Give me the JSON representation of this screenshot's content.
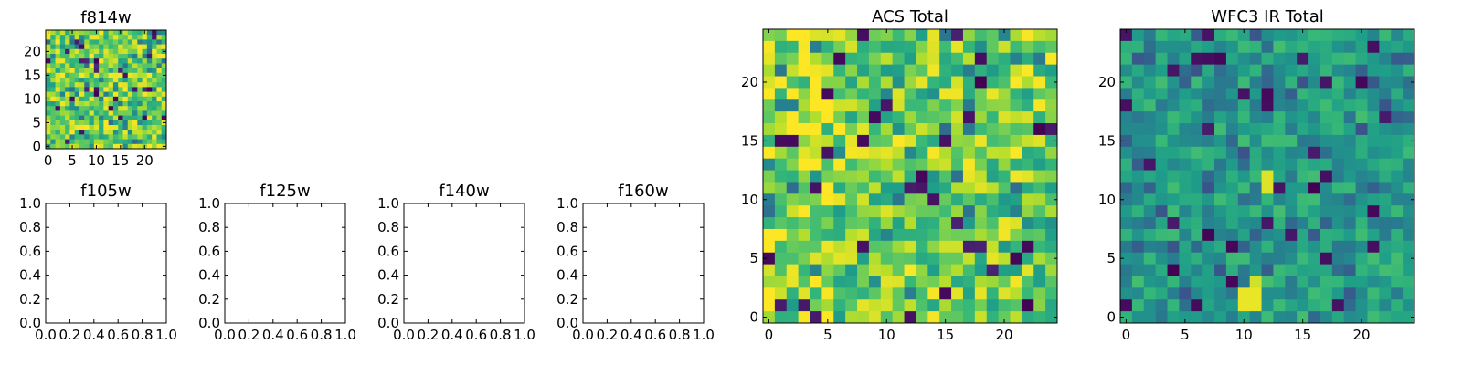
{
  "chart_data": [
    {
      "type": "heatmap",
      "title": "f814w",
      "xlabel": "",
      "ylabel": "",
      "xlim": [
        -0.5,
        24.5
      ],
      "ylim": [
        -0.5,
        24.5
      ],
      "xticks": [
        0,
        5,
        10,
        15,
        20
      ],
      "yticks": [
        0,
        5,
        10,
        15,
        20
      ],
      "xtick_labels": [
        "0",
        "5",
        "10",
        "15",
        "20"
      ],
      "ytick_labels": [
        "0",
        "5",
        "10",
        "15",
        "20"
      ],
      "grid": false,
      "colormap": "viridis",
      "value_range": [
        0,
        1
      ],
      "values_note": ""
    },
    {
      "type": "scatter",
      "title": "f105w",
      "xlim": [
        0,
        1
      ],
      "ylim": [
        0,
        1
      ],
      "xticks": [
        0,
        0.2,
        0.4,
        0.6,
        0.8,
        1.0
      ],
      "yticks": [
        0,
        0.2,
        0.4,
        0.6,
        0.8,
        1.0
      ],
      "xtick_labels": [
        "0.0",
        "0.2",
        "0.4",
        "0.6",
        "0.8",
        "1.0"
      ],
      "ytick_labels": [
        "0.0",
        "0.2",
        "0.4",
        "0.6",
        "0.8",
        "1.0"
      ],
      "grid": false,
      "series": []
    },
    {
      "type": "scatter",
      "title": "f125w",
      "xlim": [
        0,
        1
      ],
      "ylim": [
        0,
        1
      ],
      "xticks": [
        0,
        0.2,
        0.4,
        0.6,
        0.8,
        1.0
      ],
      "yticks": [
        0,
        0.2,
        0.4,
        0.6,
        0.8,
        1.0
      ],
      "xtick_labels": [
        "0.0",
        "0.2",
        "0.4",
        "0.6",
        "0.8",
        "1.0"
      ],
      "ytick_labels": [
        "0.0",
        "0.2",
        "0.4",
        "0.6",
        "0.8",
        "1.0"
      ],
      "grid": false,
      "series": []
    },
    {
      "type": "scatter",
      "title": "f140w",
      "xlim": [
        0,
        1
      ],
      "ylim": [
        0,
        1
      ],
      "xticks": [
        0,
        0.2,
        0.4,
        0.6,
        0.8,
        1.0
      ],
      "yticks": [
        0,
        0.2,
        0.4,
        0.6,
        0.8,
        1.0
      ],
      "xtick_labels": [
        "0.0",
        "0.2",
        "0.4",
        "0.6",
        "0.8",
        "1.0"
      ],
      "ytick_labels": [
        "0.0",
        "0.2",
        "0.4",
        "0.6",
        "0.8",
        "1.0"
      ],
      "grid": false,
      "series": []
    },
    {
      "type": "scatter",
      "title": "f160w",
      "xlim": [
        0,
        1
      ],
      "ylim": [
        0,
        1
      ],
      "xticks": [
        0,
        0.2,
        0.4,
        0.6,
        0.8,
        1.0
      ],
      "yticks": [
        0,
        0.2,
        0.4,
        0.6,
        0.8,
        1.0
      ],
      "xtick_labels": [
        "0.0",
        "0.2",
        "0.4",
        "0.6",
        "0.8",
        "1.0"
      ],
      "ytick_labels": [
        "0.0",
        "0.2",
        "0.4",
        "0.6",
        "0.8",
        "1.0"
      ],
      "grid": false,
      "series": []
    },
    {
      "type": "heatmap",
      "title": "ACS Total",
      "xlim": [
        -0.5,
        24.5
      ],
      "ylim": [
        -0.5,
        24.5
      ],
      "xticks": [
        0,
        5,
        10,
        15,
        20
      ],
      "yticks": [
        0,
        5,
        10,
        15,
        20
      ],
      "xtick_labels": [
        "0",
        "5",
        "10",
        "15",
        "20"
      ],
      "ytick_labels": [
        "0",
        "5",
        "10",
        "15",
        "20"
      ],
      "grid": false,
      "colormap": "viridis",
      "value_range": [
        0,
        1
      ]
    },
    {
      "type": "heatmap",
      "title": "WFC3 IR Total",
      "xlim": [
        -0.5,
        24.5
      ],
      "ylim": [
        -0.5,
        24.5
      ],
      "xticks": [
        0,
        5,
        10,
        15,
        20
      ],
      "yticks": [
        0,
        5,
        10,
        15,
        20
      ],
      "xtick_labels": [
        "0",
        "5",
        "10",
        "15",
        "20"
      ],
      "ytick_labels": [
        "0",
        "5",
        "10",
        "15",
        "20"
      ],
      "grid": false,
      "colormap": "viridis",
      "value_range": [
        0,
        1
      ]
    }
  ],
  "colors": {
    "axis": "#000000",
    "background": "#ffffff",
    "viridis_low": "#440154",
    "viridis_mid": "#21918c",
    "viridis_high": "#fde725"
  }
}
